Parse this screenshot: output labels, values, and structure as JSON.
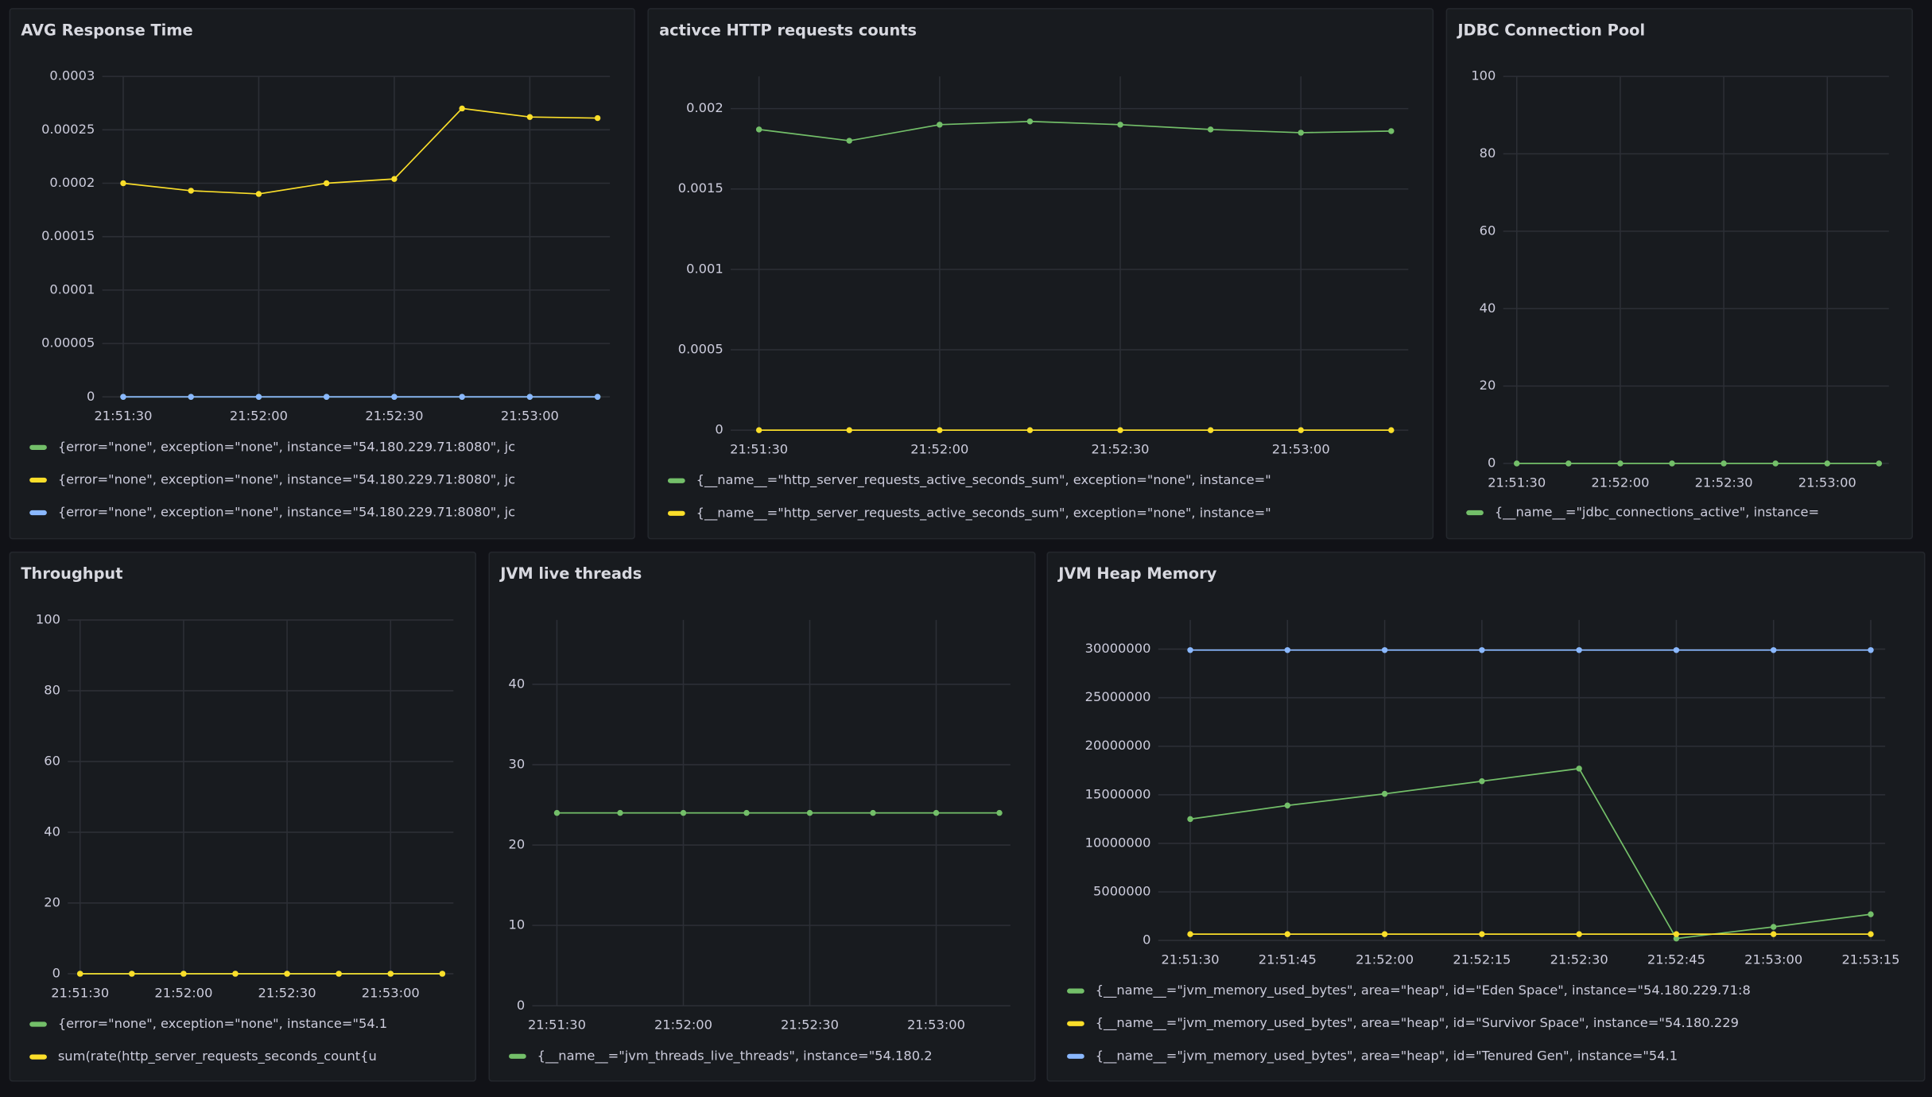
{
  "chart_data": [
    {
      "type": "line",
      "title": "AVG Response Time",
      "categories": [
        "21:51:30",
        null,
        "21:52:00",
        null,
        "21:52:30",
        null,
        "21:53:00",
        null
      ],
      "series": [
        {
          "name": "{error=\"none\", exception=\"none\", instance=\"54.180.229.71:8080\", jc",
          "color": "#73bf69",
          "values": [
            0,
            0,
            0,
            0,
            0,
            0,
            0,
            0
          ]
        },
        {
          "name": "{error=\"none\", exception=\"none\", instance=\"54.180.229.71:8080\", jc",
          "color": "#fade2a",
          "values": [
            0.0002,
            0.000193,
            0.00019,
            0.0002,
            0.000204,
            0.00027,
            0.000262,
            0.000261
          ]
        },
        {
          "name": "{error=\"none\", exception=\"none\", instance=\"54.180.229.71:8080\", jc",
          "color": "#8ab8ff",
          "values": [
            0,
            0,
            0,
            0,
            0,
            0,
            0,
            0
          ]
        }
      ],
      "ylim": [
        0,
        0.0003
      ],
      "yticks": [
        0,
        5e-05,
        0.0001,
        0.00015,
        0.0002,
        0.00025,
        0.0003
      ],
      "grid": true
    },
    {
      "type": "line",
      "title": "activce HTTP requests counts",
      "categories": [
        "21:51:30",
        null,
        "21:52:00",
        null,
        "21:52:30",
        null,
        "21:53:00",
        null
      ],
      "series": [
        {
          "name": "{__name__=\"http_server_requests_active_seconds_sum\", exception=\"none\", instance=\"",
          "color": "#73bf69",
          "values": [
            0.00187,
            0.0018,
            0.0019,
            0.00192,
            0.0019,
            0.00187,
            0.00185,
            0.00186
          ]
        },
        {
          "name": "{__name__=\"http_server_requests_active_seconds_sum\", exception=\"none\", instance=\"",
          "color": "#fade2a",
          "values": [
            0,
            0,
            0,
            0,
            0,
            0,
            0,
            0
          ]
        }
      ],
      "ylim": [
        0,
        0.0022
      ],
      "yticks": [
        0,
        0.0005,
        0.001,
        0.0015,
        0.002
      ],
      "grid": true
    },
    {
      "type": "line",
      "title": "JDBC Connection Pool",
      "categories": [
        "21:51:30",
        null,
        "21:52:00",
        null,
        "21:52:30",
        null,
        "21:53:00",
        null
      ],
      "series": [
        {
          "name": "{__name__=\"jdbc_connections_active\", instance=",
          "color": "#73bf69",
          "values": [
            0,
            0,
            0,
            0,
            0,
            0,
            0,
            0
          ]
        }
      ],
      "ylim": [
        0,
        100
      ],
      "yticks": [
        0,
        20,
        40,
        60,
        80,
        100
      ],
      "grid": true
    },
    {
      "type": "line",
      "title": "Throughput",
      "categories": [
        "21:51:30",
        null,
        "21:52:00",
        null,
        "21:52:30",
        null,
        "21:53:00",
        null
      ],
      "series": [
        {
          "name": "{error=\"none\", exception=\"none\", instance=\"54.1",
          "color": "#73bf69",
          "values": [
            0,
            0,
            0,
            0,
            0,
            0,
            0,
            0
          ]
        },
        {
          "name": "sum(rate(http_server_requests_seconds_count{u",
          "color": "#fade2a",
          "values": [
            0,
            0,
            0,
            0,
            0,
            0,
            0,
            0
          ]
        }
      ],
      "ylim": [
        0,
        100
      ],
      "yticks": [
        0,
        20,
        40,
        60,
        80,
        100
      ],
      "grid": true
    },
    {
      "type": "line",
      "title": "JVM live threads",
      "categories": [
        "21:51:30",
        null,
        "21:52:00",
        null,
        "21:52:30",
        null,
        "21:53:00",
        null
      ],
      "series": [
        {
          "name": "{__name__=\"jvm_threads_live_threads\", instance=\"54.180.2",
          "color": "#73bf69",
          "values": [
            24,
            24,
            24,
            24,
            24,
            24,
            24,
            24
          ]
        }
      ],
      "ylim": [
        0,
        48
      ],
      "yticks": [
        0,
        10,
        20,
        30,
        40
      ],
      "grid": true
    },
    {
      "type": "line",
      "title": "JVM Heap Memory",
      "categories": [
        "21:51:30",
        "21:51:45",
        "21:52:00",
        "21:52:15",
        "21:52:30",
        "21:52:45",
        "21:53:00",
        "21:53:15"
      ],
      "series": [
        {
          "name": "{__name__=\"jvm_memory_used_bytes\", area=\"heap\", id=\"Eden Space\", instance=\"54.180.229.71:8",
          "color": "#73bf69",
          "values": [
            12500000,
            13900000,
            15100000,
            16400000,
            17700000,
            200000,
            1400000,
            2700000
          ]
        },
        {
          "name": "{__name__=\"jvm_memory_used_bytes\", area=\"heap\", id=\"Survivor Space\", instance=\"54.180.229",
          "color": "#fade2a",
          "values": [
            650000,
            650000,
            650000,
            650000,
            650000,
            650000,
            650000,
            650000
          ]
        },
        {
          "name": "{__name__=\"jvm_memory_used_bytes\", area=\"heap\", id=\"Tenured Gen\", instance=\"54.1",
          "color": "#8ab8ff",
          "values": [
            29900000,
            29900000,
            29900000,
            29900000,
            29900000,
            29900000,
            29900000,
            29900000
          ]
        }
      ],
      "ylim": [
        0,
        33000000
      ],
      "yticks": [
        0,
        5000000,
        10000000,
        15000000,
        20000000,
        25000000,
        30000000
      ],
      "grid": true
    }
  ]
}
